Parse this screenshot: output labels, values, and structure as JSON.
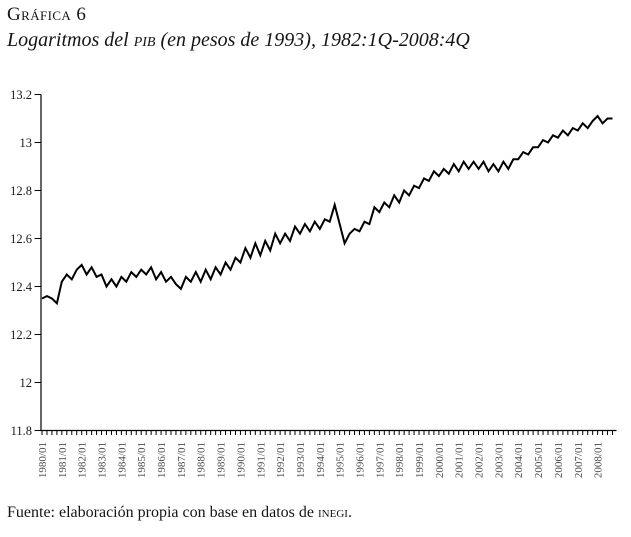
{
  "header": {
    "label": "Gráfica 6",
    "subtitle_pre": "Logaritmos del ",
    "subtitle_acronym": "pib",
    "subtitle_post": " (en pesos de 1993), 1982:1Q-2008:4Q"
  },
  "footer": {
    "source_pre": "Fuente: elaboración propia con base en datos de ",
    "source_acronym": "inegi",
    "source_post": "."
  },
  "chart_data": {
    "type": "line",
    "title": "Gráfica 6",
    "subtitle": "Logaritmos del PIB (en pesos de 1993), 1982:1Q-2008:4Q",
    "x_start": "1980/01",
    "x_end": "2008/04",
    "x_frequency": "quarterly",
    "x_tick_labels": [
      "1980/01",
      "1981/01",
      "1982/01",
      "1983/01",
      "1984/01",
      "1985/01",
      "1986/01",
      "1987/01",
      "1988/01",
      "1989/01",
      "1990/01",
      "1991/01",
      "1992/01",
      "1993/01",
      "1994/01",
      "1995/01",
      "1996/01",
      "1997/01",
      "1998/01",
      "1999/01",
      "2000/01",
      "2001/01",
      "2002/01",
      "2003/01",
      "2004/01",
      "2005/01",
      "2006/01",
      "2007/01",
      "2008/01"
    ],
    "y_ticks": [
      11.8,
      12,
      12.2,
      12.4,
      12.6,
      12.8,
      13,
      13.2
    ],
    "y_tick_labels": [
      "11.8",
      "12",
      "12.2",
      "12.4",
      "12.6",
      "12.8",
      "13",
      "13.2"
    ],
    "ylim": [
      11.8,
      13.2
    ],
    "grid": false,
    "legend": "none",
    "line_color": "#000000",
    "axis_color": "#000000",
    "values": [
      12.35,
      12.36,
      12.35,
      12.33,
      12.42,
      12.45,
      12.43,
      12.47,
      12.49,
      12.45,
      12.48,
      12.44,
      12.45,
      12.4,
      12.43,
      12.4,
      12.44,
      12.42,
      12.46,
      12.44,
      12.47,
      12.45,
      12.48,
      12.43,
      12.46,
      12.42,
      12.44,
      12.41,
      12.39,
      12.44,
      12.42,
      12.46,
      12.42,
      12.47,
      12.43,
      12.48,
      12.45,
      12.5,
      12.47,
      12.52,
      12.5,
      12.56,
      12.52,
      12.58,
      12.53,
      12.59,
      12.55,
      12.62,
      12.58,
      12.62,
      12.59,
      12.65,
      12.62,
      12.66,
      12.63,
      12.67,
      12.64,
      12.68,
      12.67,
      12.74,
      12.66,
      12.58,
      12.62,
      12.64,
      12.63,
      12.67,
      12.66,
      12.73,
      12.71,
      12.75,
      12.73,
      12.78,
      12.75,
      12.8,
      12.78,
      12.82,
      12.81,
      12.85,
      12.84,
      12.88,
      12.86,
      12.89,
      12.87,
      12.91,
      12.88,
      12.92,
      12.89,
      12.92,
      12.89,
      12.92,
      12.88,
      12.91,
      12.88,
      12.92,
      12.89,
      12.93,
      12.93,
      12.96,
      12.95,
      12.98,
      12.98,
      13.01,
      13.0,
      13.03,
      13.02,
      13.05,
      13.03,
      13.06,
      13.05,
      13.08,
      13.06,
      13.09,
      13.11,
      13.08,
      13.1,
      13.1
    ]
  }
}
